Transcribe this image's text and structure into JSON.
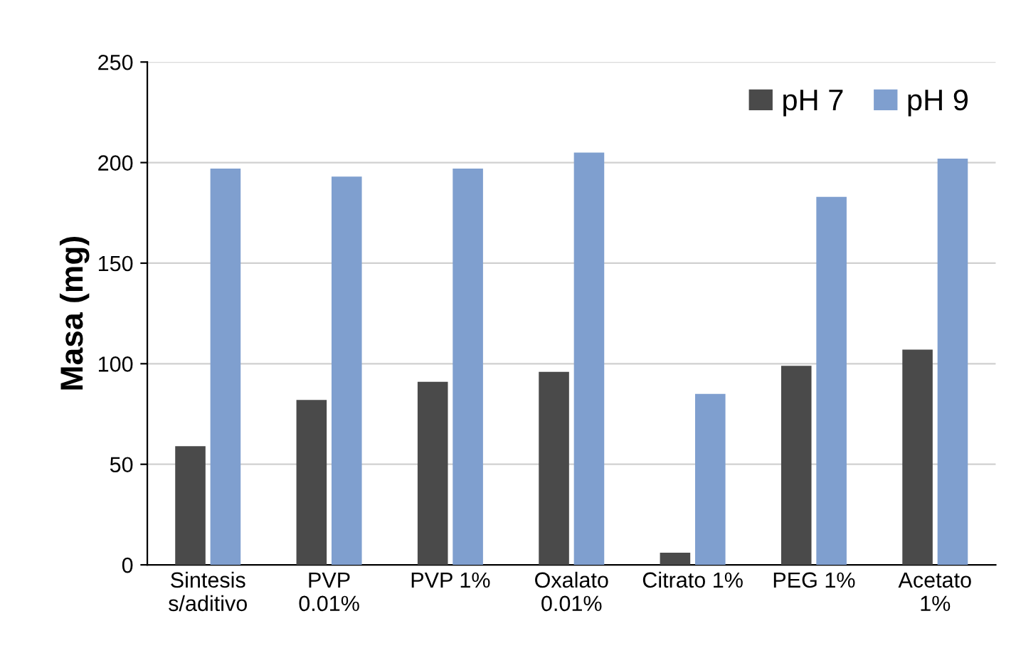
{
  "chart_data": {
    "type": "bar",
    "ylabel": "Masa (mg)",
    "categories": [
      "Sintesis\ns/aditivo",
      "PVP\n0.01%",
      "PVP 1%",
      "Oxalato\n0.01%",
      "Citrato 1%",
      "PEG 1%",
      "Acetato\n1%"
    ],
    "series": [
      {
        "name": "pH 7",
        "color": "#4a4a4a",
        "values": [
          59,
          82,
          91,
          96,
          6,
          99,
          107
        ]
      },
      {
        "name": "pH 9",
        "color": "#7f9fcf",
        "values": [
          197,
          193,
          197,
          205,
          85,
          183,
          202
        ]
      }
    ],
    "ylim": [
      0,
      250
    ],
    "yticks": [
      0,
      50,
      100,
      150,
      200,
      250
    ],
    "grid": "y",
    "legend": "top right"
  }
}
